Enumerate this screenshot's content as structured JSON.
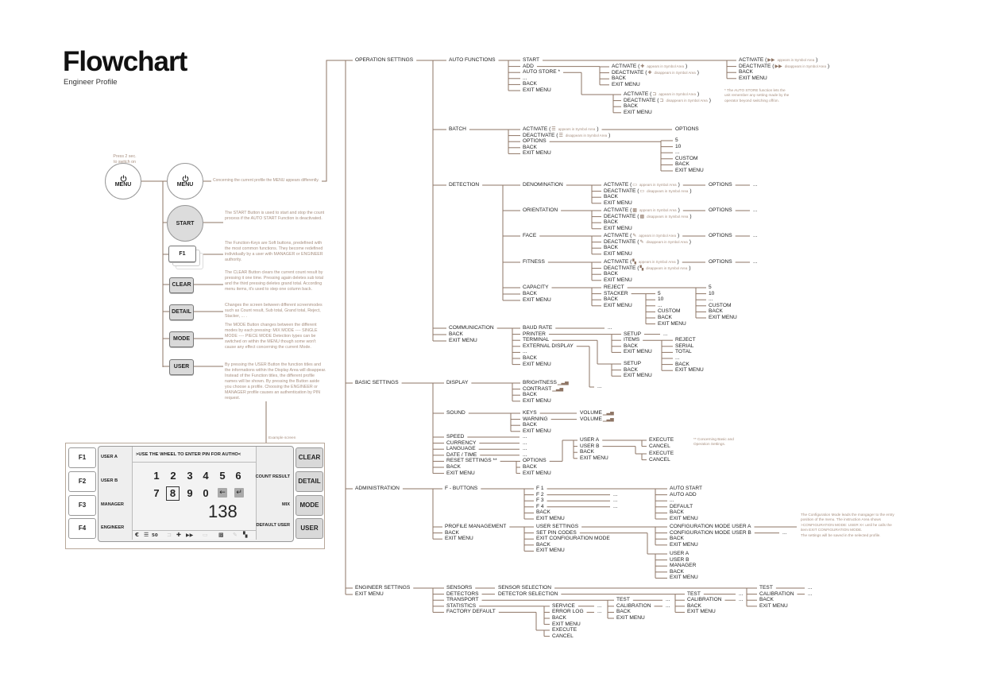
{
  "title": "Flowchart",
  "subtitle": "Engineer Profile",
  "colors": {
    "line": "#8e7565",
    "note_text": "#a89080",
    "button_grey": "#d9d9d9"
  },
  "left": {
    "press_note_1": "Press 2 sec.",
    "press_note_2": "to switch on",
    "power_label": "MENU",
    "menu_label": "MENU",
    "menu_note": "Concerning the current profile the MENU appears differently.",
    "start": {
      "label": "START",
      "note": "The START Button is used to start and stop the count process if the AUTO START Function is deactivated."
    },
    "f1": {
      "label": "F1",
      "note": "The Function-Keys are Soft buttons, predefined with the most common functions. They become redefined individually by a user with MANAGER or ENGINEER authority."
    },
    "clear": {
      "label": "CLEAR",
      "note": "The CLEAR Button clears the current count result by pressing it one time. Pressing again deletes sub total and the third pressing deletes grand total. According menu items, it's used to step one column back."
    },
    "detail": {
      "label": "DETAIL",
      "note": "Changes the screen between different screenmodes such as Count result, Sub total, Grand total, Reject, Stacker, ... ."
    },
    "mode": {
      "label": "MODE",
      "note": "The MODE Button changes between the different modes by each pressing: MIX MODE ---- SINGLE MODE ---- PIECE MODE Detection types can be switched on within the MENU though some won't cause any effect concerning the current Mode."
    },
    "user": {
      "label": "USER",
      "note": "By pressing the USER Button the function titles and the informations within the Display Area will disappear. Instead of the Function titles, the different profile names will be shown. By pressing the Button aside you choose a profile. Choosing the ENGINEER or MANAGER profile causes an authentication by PIN request."
    },
    "example_label": "Example screen"
  },
  "screen": {
    "f_buttons": [
      "F1",
      "F2",
      "F3",
      "F4"
    ],
    "profiles": [
      "USER A",
      "USER B",
      "MANAGER",
      "ENGINEER"
    ],
    "instruction": ">USE THE WHEEL TO ENTER PIN FOR AUTHO<",
    "digits_row1": [
      "1",
      "2",
      "3",
      "4",
      "5",
      "6"
    ],
    "digits_row2": [
      "7",
      "8",
      "9",
      "0"
    ],
    "selected_digit": "8",
    "pin_value": "138",
    "right_labels": {
      "count_result": "COUNT RESULT",
      "mix": "MIX",
      "default_user": "DEFAULT USER"
    },
    "right_buttons": [
      "CLEAR",
      "DETAIL",
      "MODE",
      "USER"
    ],
    "symbols": {
      "currency": "€",
      "batch_value": "50"
    }
  },
  "notes": {
    "auto_store": "* The AUTO STORE function lets the unit remember any setting made by the operator beyond switching off/on.",
    "reset": "** Concerning Basic and Operation Settings.",
    "config_1": "The Configuration Mode leads the mangager to the entry position of the menu. The instruction Area shows >CONFIGURATION MODE: USER X< until he calls the item EXIT CONFIGURATION MODE.",
    "config_2": "The settings will be saved in the selected profile."
  },
  "menu": {
    "root": [
      "OPERATION SETTINGS",
      "BASIC SETTINGS",
      "ADMINISTRATION",
      "ENGINEER SETTINGS",
      "EXIT MENU"
    ],
    "op": [
      "AUTO FUNCTIONS",
      "BATCH",
      "DETECTION",
      "COMMUNICATION",
      "BACK",
      "EXIT MENU"
    ],
    "auto": [
      "START",
      "ADD",
      "AUTO STORE *",
      "...",
      "BACK",
      "EXIT MENU"
    ],
    "auto_start": [
      {
        "label": "ACTIVATE (",
        "icon": "fast-forward-icon",
        "note": "appears in Symbol Area",
        "close": ")"
      },
      {
        "label": "DEACTIVATE (",
        "icon": "fast-forward-icon",
        "note": "disappears in Symbol Area",
        "close": ")"
      },
      "BACK",
      "EXIT MENU"
    ],
    "auto_add": [
      {
        "label": "ACTIVATE (",
        "icon": "plus-icon",
        "note": "appears in Symbol Area",
        "close": ")"
      },
      {
        "label": "DEACTIVATE (",
        "icon": "plus-icon",
        "note": "disappears in Symbol Area",
        "close": ")"
      },
      "BACK",
      "EXIT MENU"
    ],
    "auto_store": [
      {
        "label": "ACTIVATE (",
        "icon": "auto-store-icon",
        "note": "appears in Symbol Area",
        "close": ")"
      },
      {
        "label": "DEACTIVATE (",
        "icon": "auto-store-icon",
        "note": "disappears in Symbol Area",
        "close": ")"
      },
      "BACK",
      "EXIT MENU"
    ],
    "batch": [
      {
        "label": "ACTIVATE (",
        "icon": "batch-icon",
        "note": "appears in Symbol Area",
        "close": ")"
      },
      {
        "label": "DEACTIVATE (",
        "icon": "batch-icon",
        "note": "disappears in Symbol Area",
        "close": ")"
      },
      "OPTIONS",
      "BACK",
      "EXIT MENU"
    ],
    "batch_act_options": [
      "OPTIONS"
    ],
    "batch_options": [
      "5",
      "10",
      "...",
      "CUSTOM",
      "BACK",
      "EXIT MENU"
    ],
    "detection": [
      "DENOMINATION",
      "ORIENTATION",
      "FACE",
      "FITNESS",
      "CAPACITY",
      "BACK",
      "EXIT MENU"
    ],
    "denomination": [
      {
        "label": "ACTIVATE (",
        "icon": "denomination-icon",
        "note": "appears in Symbol Area",
        "close": ")"
      },
      {
        "label": "DEACTIVATE (",
        "icon": "denomination-icon",
        "note": "disappears in Symbol Area",
        "close": ")"
      },
      "BACK",
      "EXIT MENU"
    ],
    "denomination_options": [
      "OPTIONS"
    ],
    "denomination_more": [
      "..."
    ],
    "orientation": [
      {
        "label": "ACTIVATE (",
        "icon": "orientation-icon",
        "note": "appears in Symbol Area",
        "close": ")"
      },
      {
        "label": "DEACTIVATE (",
        "icon": "orientation-icon",
        "note": "disappears in Symbol Area",
        "close": ")"
      },
      "BACK",
      "EXIT MENU"
    ],
    "orientation_options": [
      "OPTIONS"
    ],
    "orientation_more": [
      "..."
    ],
    "face": [
      {
        "label": "ACTIVATE (",
        "icon": "face-icon",
        "note": "appears in Symbol Area",
        "close": ")"
      },
      {
        "label": "DEACTIVATE (",
        "icon": "face-icon",
        "note": "disappears in Symbol Area",
        "close": ")"
      },
      "BACK",
      "EXIT MENU"
    ],
    "face_options": [
      "OPTIONS"
    ],
    "face_more": [
      "..."
    ],
    "fitness": [
      {
        "label": "ACTIVATE (",
        "icon": "fitness-icon",
        "note": "appears in Symbol Area",
        "close": ")"
      },
      {
        "label": "DEACTIVATE (",
        "icon": "fitness-icon",
        "note": "disappears in Symbol Area",
        "close": ")"
      },
      "BACK",
      "EXIT MENU"
    ],
    "fitness_options": [
      "OPTIONS"
    ],
    "fitness_more": [
      "..."
    ],
    "capacity": [
      "REJECT",
      "STACKER",
      "BACK",
      "EXIT MENU"
    ],
    "capacity_reject": [
      "5",
      "10",
      "...",
      "CUSTOM",
      "BACK",
      "EXIT MENU"
    ],
    "capacity_stacker": [
      "5",
      "10",
      "...",
      "CUSTOM",
      "BACK",
      "EXIT MENU"
    ],
    "communication": [
      "BAUD RATE",
      "PRINTER",
      "TERMINAL",
      "EXTERNAL DISPLAY",
      "...",
      "BACK",
      "EXIT MENU"
    ],
    "baud": [
      "..."
    ],
    "printer": [
      "SETUP",
      "ITEMS",
      "BACK",
      "EXIT MENU"
    ],
    "printer_setup": [
      "..."
    ],
    "printer_items": [
      "REJECT",
      "SERIAL",
      "TOTAL",
      "...",
      "BACK",
      "EXIT MENU"
    ],
    "terminal": [
      "SETUP",
      "BACK",
      "EXIT MENU"
    ],
    "external": [
      "..."
    ],
    "basic": [
      "DISPLAY",
      "SOUND",
      "SPEED",
      "CURRENCY",
      "LANGUAGE",
      "DATE / TIME",
      "RESET SETTINGS **",
      "BACK",
      "EXIT MENU"
    ],
    "display": [
      {
        "label": "BRIGHTNESS",
        "icon": "level-bars-icon"
      },
      {
        "label": "CONTRAST",
        "icon": "level-bars-icon"
      },
      "BACK",
      "EXIT MENU"
    ],
    "sound": [
      "KEYS",
      "WARNING",
      "BACK",
      "EXIT MENU"
    ],
    "keys_vol": [
      {
        "label": "VOLUME",
        "icon": "level-bars-icon"
      }
    ],
    "warning_vol": [
      {
        "label": "VOLUME",
        "icon": "level-bars-icon"
      }
    ],
    "speed_val": [
      "..."
    ],
    "currency_val": [
      "..."
    ],
    "language_val": [
      "..."
    ],
    "date_val": [
      "..."
    ],
    "reset": [
      "OPTIONS",
      "BACK",
      "EXIT MENU"
    ],
    "reset_options": [
      "USER A",
      "USER B",
      "BACK",
      "EXIT MENU"
    ],
    "reset_user_a": [
      "EXECUTE",
      "CANCEL"
    ],
    "reset_user_b": [
      "EXECUTE",
      "CANCEL"
    ],
    "admin": [
      "F - BUTTONS",
      "PROFILE MANAGEMENT",
      "BACK",
      "EXIT MENU"
    ],
    "fbuttons": [
      "F 1",
      "F 2",
      "F 3",
      "F 4",
      "BACK",
      "EXIT MENU"
    ],
    "f1": [
      "AUTO START",
      "AUTO ADD",
      "...",
      "DEFAULT",
      "BACK",
      "EXIT MENU"
    ],
    "f2_val": [
      "..."
    ],
    "f3_val": [
      "..."
    ],
    "f4_val": [
      "..."
    ],
    "profile": [
      "USER SETTINGS",
      "SET PIN CODES",
      "EXIT CONFIGURATION MODE",
      "BACK",
      "EXIT MENU"
    ],
    "user_settings": [
      "CONFIGURATION MODE USER A",
      "CONFIGURATION MODE USER B",
      "BACK",
      "EXIT MENU"
    ],
    "config_b_val": [
      "..."
    ],
    "pin_codes": [
      "USER A",
      "USER B",
      "MANAGER",
      "BACK",
      "EXIT MENU"
    ],
    "engineer": [
      "SENSORS",
      "DETECTORS",
      "TRANSPORT",
      "STATISTICS",
      "FACTORY DEFAULT"
    ],
    "sensors": [
      "SENSOR SELECTION"
    ],
    "sensor_sel": [
      "TEST",
      "CALIBRATION",
      "BACK",
      "EXIT MENU"
    ],
    "sensor_test_val": [
      "..."
    ],
    "sensor_cal_val": [
      "..."
    ],
    "detectors": [
      "DETECTOR SELECTION"
    ],
    "detector_sel": [
      "TEST",
      "CALIBRATION",
      "BACK",
      "EXIT MENU"
    ],
    "detector_test_val": [
      "..."
    ],
    "detector_cal_val": [
      "..."
    ],
    "transport": [
      "TEST",
      "CALIBRATION",
      "BACK",
      "EXIT MENU"
    ],
    "transport_test_val": [
      "..."
    ],
    "transport_cal_val": [
      "..."
    ],
    "statistics": [
      "SERVICE",
      "ERROR LOG",
      "BACK",
      "EXIT MENU"
    ],
    "service_val": [
      "..."
    ],
    "errorlog_val": [
      "..."
    ],
    "factory": [
      "EXECUTE",
      "CANCEL"
    ]
  }
}
